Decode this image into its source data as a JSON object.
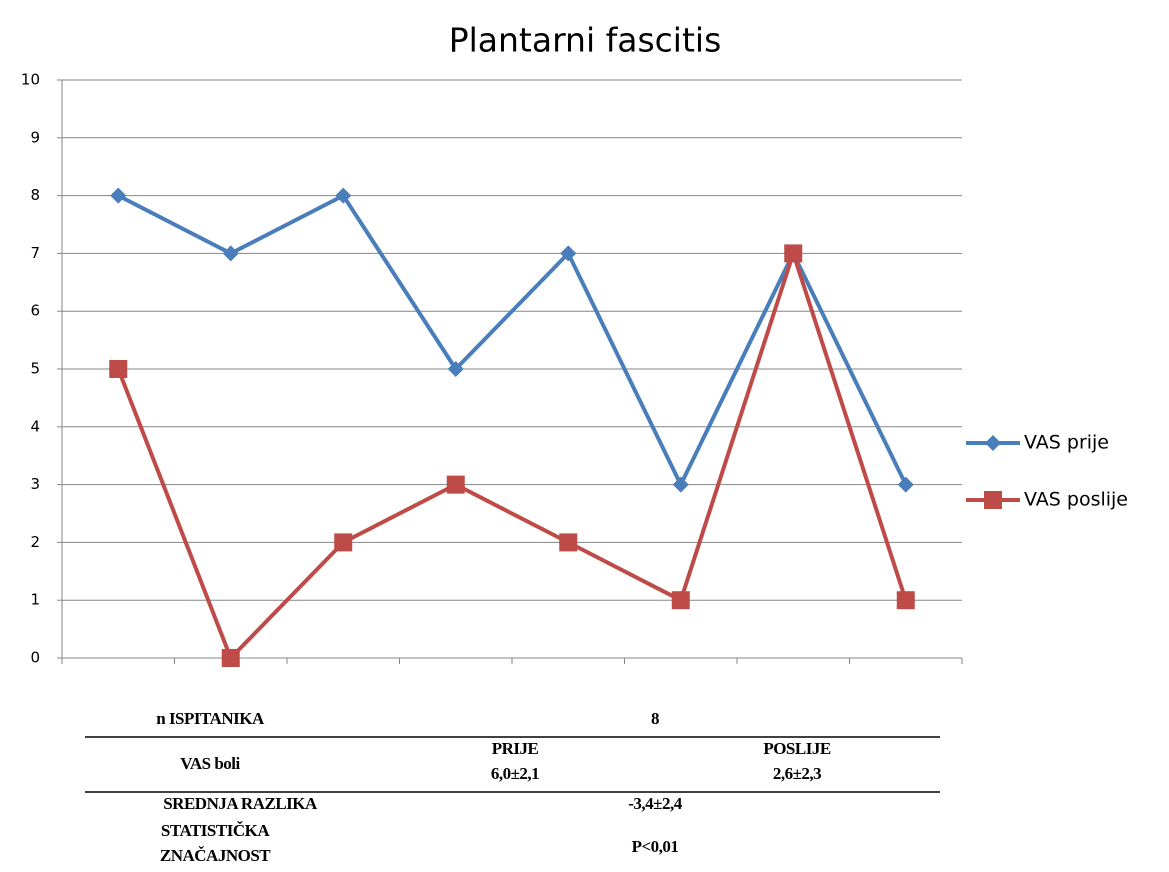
{
  "chart_data": {
    "type": "line",
    "title": "Plantarni fascitis",
    "categories": [
      null,
      null,
      null,
      null,
      null,
      null,
      null,
      null
    ],
    "series": [
      {
        "name": "VAS prije",
        "color": "#4a7ebb",
        "marker": "diamond",
        "values": [
          8,
          7,
          8,
          5,
          7,
          3,
          7,
          3
        ]
      },
      {
        "name": "VAS poslije",
        "color": "#be4b48",
        "marker": "square",
        "values": [
          5,
          0,
          2,
          3,
          2,
          1,
          7,
          1
        ]
      }
    ],
    "ylim": [
      0,
      10
    ],
    "yticks": [
      0,
      1,
      2,
      3,
      4,
      5,
      6,
      7,
      8,
      9,
      10
    ],
    "grid": true,
    "legend": "right"
  },
  "table": {
    "rows": [
      [
        "n ISPITANIKA",
        "8"
      ],
      [
        "VAS boli",
        [
          "PRIJE",
          "6,0±2,1"
        ],
        [
          "POSLIJE",
          "2,6±2,3"
        ]
      ],
      [
        "SREDNJA RAZLIKA",
        "-3,4±2,4"
      ],
      [
        [
          "STATISTIČKA",
          "ZNAČAJNOST"
        ],
        "P<0,01"
      ]
    ]
  }
}
